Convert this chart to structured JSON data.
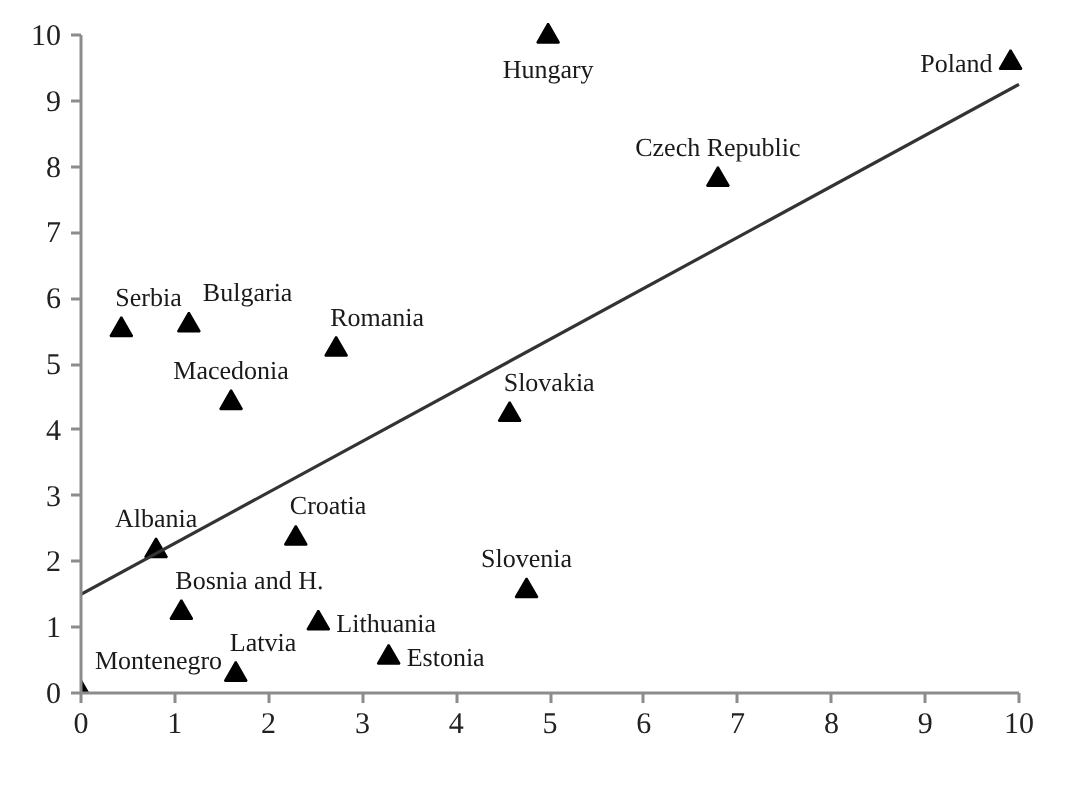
{
  "chart_data": {
    "type": "scatter",
    "xlim": [
      0,
      10
    ],
    "ylim": [
      0,
      10
    ],
    "xticks": [
      0,
      1,
      2,
      3,
      4,
      5,
      6,
      7,
      8,
      9,
      10
    ],
    "yticks": [
      0,
      1,
      2,
      3,
      4,
      5,
      6,
      7,
      8,
      9,
      10
    ],
    "grid": false,
    "series": [
      {
        "color": "#000000",
        "marker": "triangle",
        "x": [
          0,
          0.43,
          0.8,
          1.07,
          1.15,
          1.6,
          1.65,
          2.29,
          2.53,
          2.72,
          3.28,
          4.57,
          4.75,
          4.98,
          6.79,
          9.91
        ],
        "values": [
          0,
          5.52,
          2.16,
          1.22,
          5.59,
          4.41,
          0.28,
          2.35,
          1.06,
          5.22,
          0.54,
          4.23,
          1.55,
          9.98,
          7.8,
          9.58
        ]
      },
      {
        "type": "line",
        "color": "#333333",
        "x": [
          0,
          10
        ],
        "values": [
          1.5,
          9.25
        ]
      }
    ],
    "annotations": [
      {
        "text": "Montenegro",
        "x": 0,
        "y": 0
      },
      {
        "text": "Serbia",
        "x": 0.43,
        "y": 5.52
      },
      {
        "text": "Albania",
        "x": 0.8,
        "y": 2.16
      },
      {
        "text": "Bosnia and H.",
        "x": 1.07,
        "y": 1.22
      },
      {
        "text": "Bulgaria",
        "x": 1.15,
        "y": 5.59
      },
      {
        "text": "Macedonia",
        "x": 1.6,
        "y": 4.41
      },
      {
        "text": "Latvia",
        "x": 1.65,
        "y": 0.28
      },
      {
        "text": "Croatia",
        "x": 2.29,
        "y": 2.35
      },
      {
        "text": "Lithuania",
        "x": 2.53,
        "y": 1.06
      },
      {
        "text": "Romania",
        "x": 2.72,
        "y": 5.22
      },
      {
        "text": "Estonia",
        "x": 3.28,
        "y": 0.54
      },
      {
        "text": "Slovakia",
        "x": 4.57,
        "y": 4.23
      },
      {
        "text": "Slovenia",
        "x": 4.75,
        "y": 1.55
      },
      {
        "text": "Hungary",
        "x": 4.98,
        "y": 9.98
      },
      {
        "text": "Czech Republic",
        "x": 6.79,
        "y": 7.8
      },
      {
        "text": "Poland",
        "x": 9.91,
        "y": 9.58
      }
    ]
  }
}
